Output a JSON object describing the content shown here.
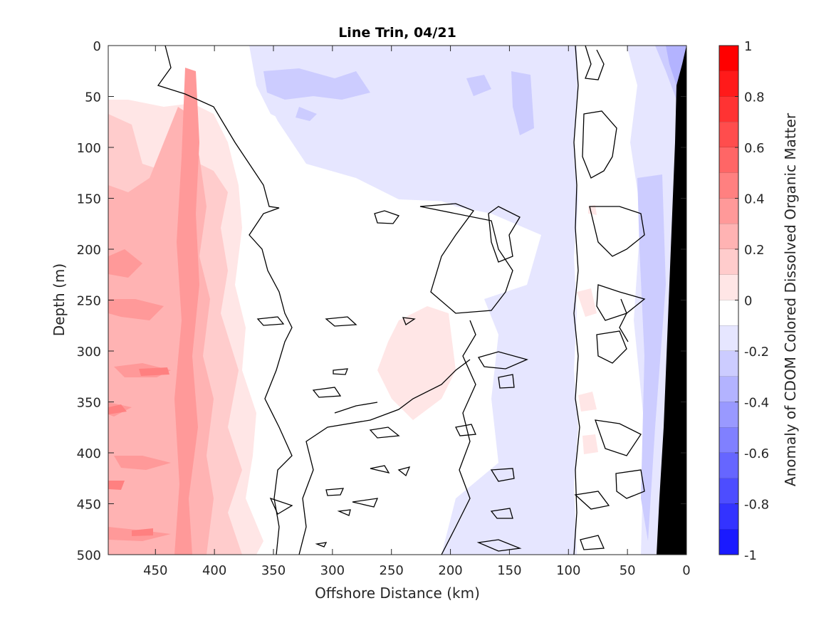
{
  "chart_data": {
    "type": "heatmap",
    "title": "Line Trin, 04/21",
    "xlabel": "Offshore Distance (km)",
    "ylabel": "Depth (m)",
    "xlim": [
      490,
      0
    ],
    "ylim": [
      0,
      500
    ],
    "x_reversed": true,
    "y_reversed": true,
    "x_ticks": [
      450,
      400,
      350,
      300,
      250,
      200,
      150,
      100,
      50,
      0
    ],
    "y_ticks": [
      0,
      50,
      100,
      150,
      200,
      250,
      300,
      350,
      400,
      450,
      500
    ],
    "colorbar": {
      "label": "Anomaly of CDOM Colored Dissolved Organic Matter",
      "range": [
        -1,
        1
      ],
      "ticks": [
        "1",
        "0.8",
        "0.6",
        "0.4",
        "0.2",
        "0",
        "-0.2",
        "-0.4",
        "-0.6",
        "-0.8",
        "-1"
      ],
      "levels": [
        1.0,
        0.9,
        0.8,
        0.7,
        0.6,
        0.5,
        0.4,
        0.3,
        0.2,
        0.1,
        0.0,
        -0.1,
        -0.2,
        -0.3,
        -0.4,
        -0.5,
        -0.6,
        -0.7,
        -0.8,
        -0.9,
        -1.0
      ],
      "band_colors": [
        "#ff0000",
        "#ff1a1a",
        "#ff3333",
        "#ff4d4d",
        "#ff6666",
        "#ff8080",
        "#ff9999",
        "#ffb3b3",
        "#ffcccc",
        "#ffe6e6",
        "#ffffff",
        "#e6e6ff",
        "#ccccff",
        "#b3b3ff",
        "#9999ff",
        "#8080ff",
        "#6666ff",
        "#4d4dff",
        "#3333ff",
        "#1a1aff"
      ]
    },
    "contour_levels": [
      0
    ],
    "bathymetry_color": "#000000",
    "field_summary": [
      {
        "x_range": [
          490,
          370
        ],
        "depth_range": [
          0,
          500
        ],
        "anomaly_range": [
          0.1,
          0.5
        ]
      },
      {
        "x_range": [
          420,
          400
        ],
        "depth_range": [
          80,
          500
        ],
        "anomaly_range": [
          0.3,
          0.5
        ]
      },
      {
        "x_range": [
          350,
          110
        ],
        "depth_range": [
          0,
          160
        ],
        "anomaly_range": [
          -0.2,
          -0.1
        ]
      },
      {
        "x_range": [
          240,
          180
        ],
        "depth_range": [
          260,
          420
        ],
        "anomaly_range": [
          0.0,
          0.2
        ]
      },
      {
        "x_range": [
          160,
          100
        ],
        "depth_range": [
          280,
          500
        ],
        "anomaly_range": [
          -0.2,
          0.0
        ]
      },
      {
        "x_range": [
          60,
          0
        ],
        "depth_range": [
          0,
          500
        ],
        "anomaly_range": [
          -0.4,
          -0.1
        ]
      }
    ]
  }
}
